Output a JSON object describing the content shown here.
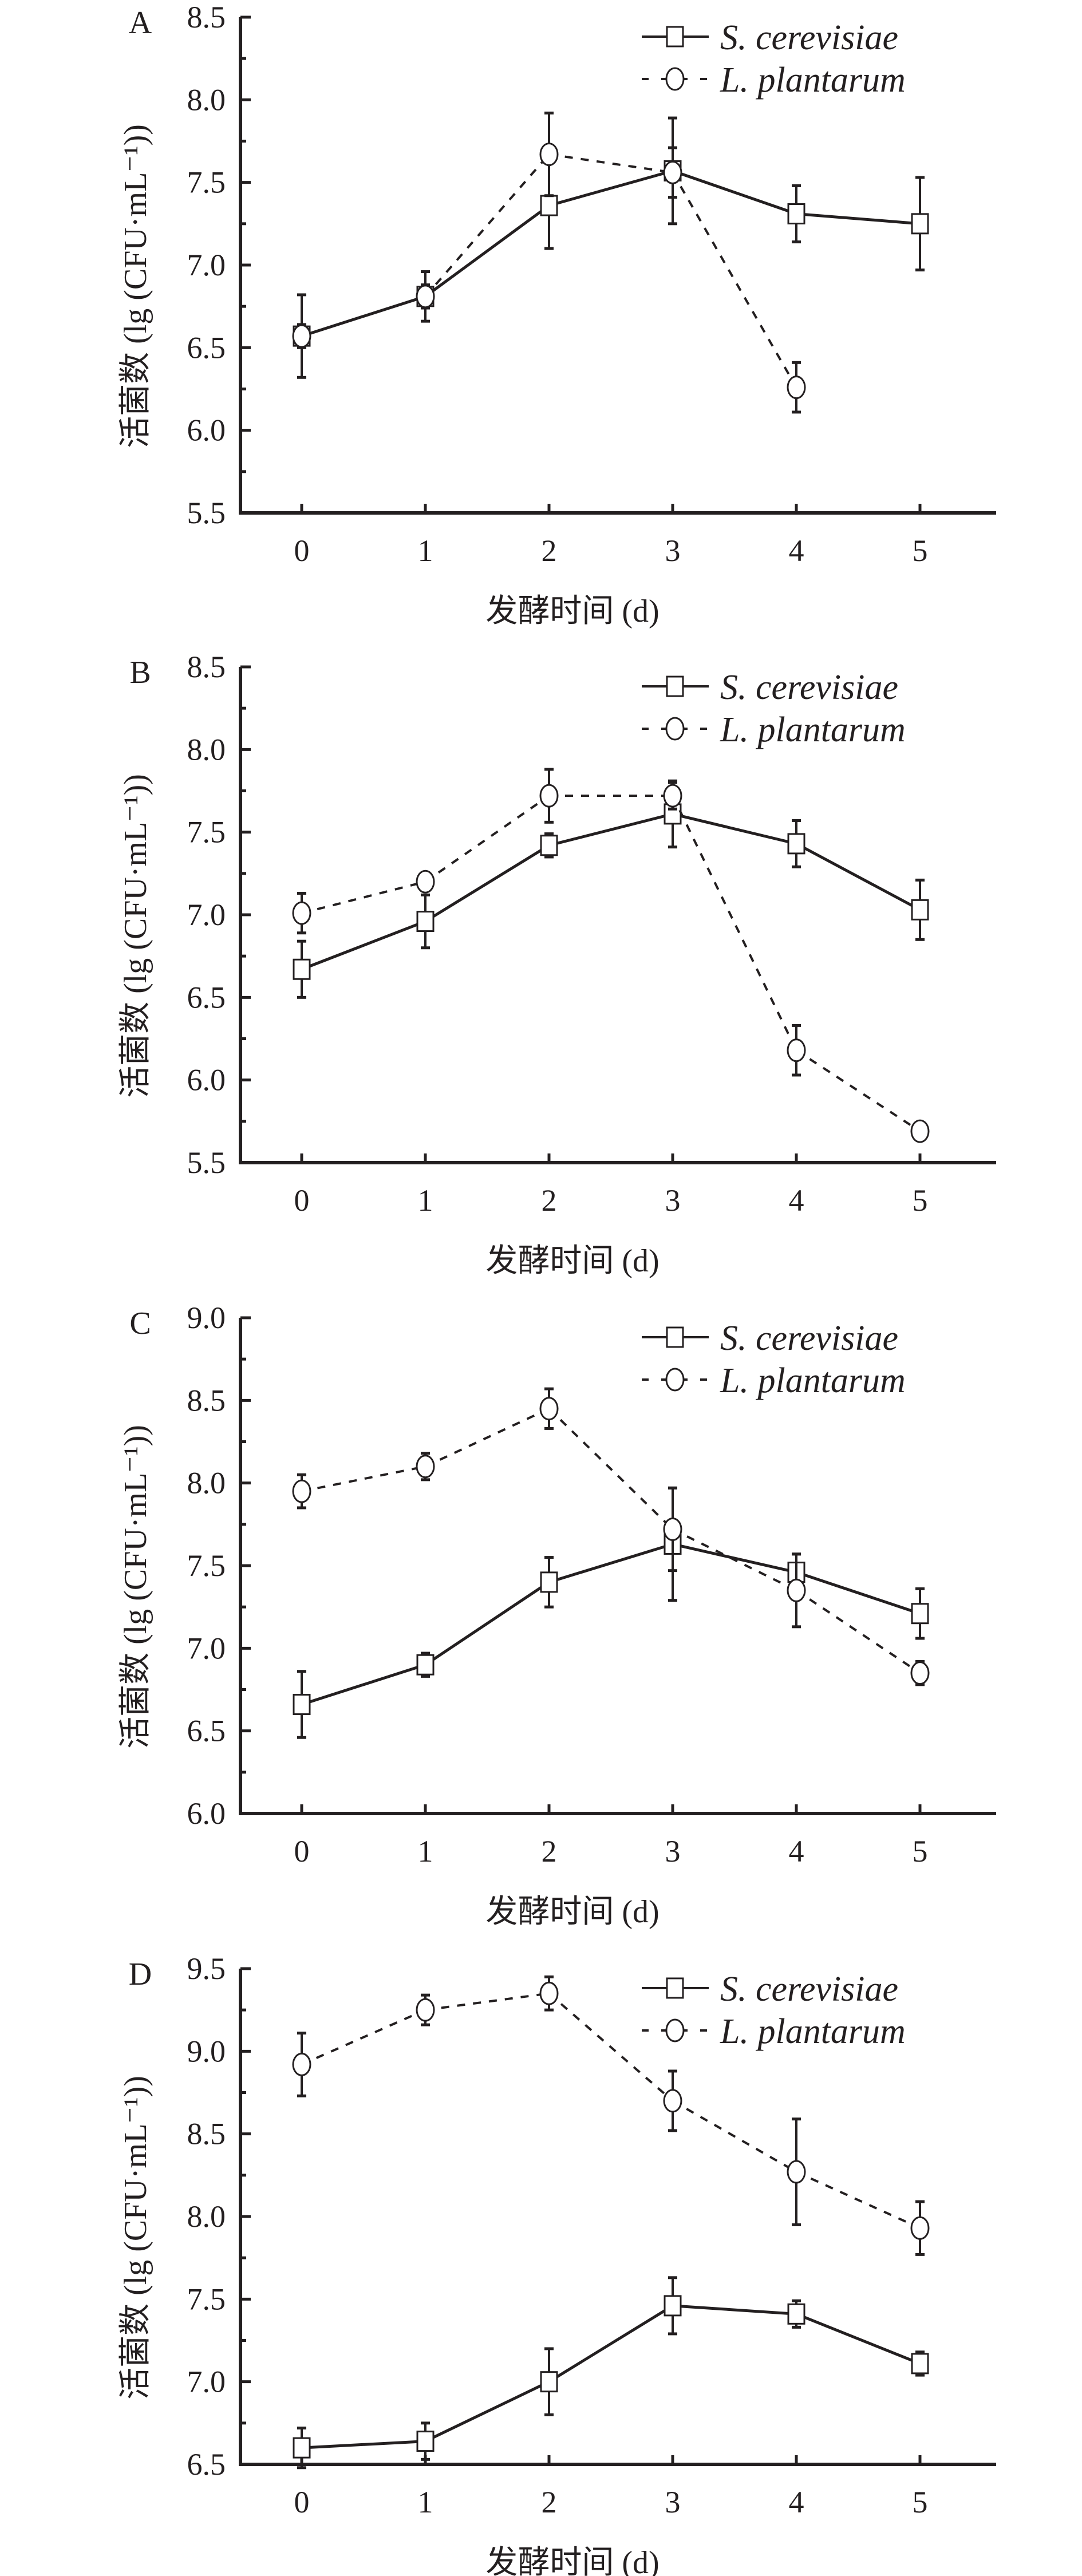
{
  "colors": {
    "ink": "#231f20",
    "marker_fill": "#ffffff"
  },
  "chart_data": [
    {
      "type": "line",
      "panel": "A",
      "xlabel": "发酵时间 (d)",
      "ylabel": "活菌数 (lg (CFU·mL⁻¹))",
      "x": [
        0,
        1,
        2,
        3,
        4,
        5
      ],
      "xticks": [
        "0",
        "1",
        "2",
        "3",
        "4",
        "5"
      ],
      "ylim": [
        5.5,
        8.5
      ],
      "yticks": [
        "5.5",
        "6.0",
        "6.5",
        "7.0",
        "7.5",
        "8.0",
        "8.5"
      ],
      "legend_position": "top-right",
      "series": [
        {
          "name": "S. cerevisiae",
          "marker": "square",
          "line": "solid",
          "values": [
            6.57,
            6.81,
            7.36,
            7.57,
            7.31,
            7.25
          ],
          "errors": [
            0.25,
            0.15,
            0.26,
            0.32,
            0.17,
            0.28
          ]
        },
        {
          "name": "L. plantarum",
          "marker": "circle",
          "line": "dashed",
          "values": [
            6.57,
            6.81,
            7.67,
            7.56,
            6.26,
            null
          ],
          "errors": [
            0.07,
            0.07,
            0.25,
            0.15,
            0.15,
            null
          ]
        }
      ]
    },
    {
      "type": "line",
      "panel": "B",
      "xlabel": "发酵时间 (d)",
      "ylabel": "活菌数 (lg (CFU·mL⁻¹))",
      "x": [
        0,
        1,
        2,
        3,
        4,
        5
      ],
      "xticks": [
        "0",
        "1",
        "2",
        "3",
        "4",
        "5"
      ],
      "ylim": [
        5.5,
        8.5
      ],
      "yticks": [
        "5.5",
        "6.0",
        "6.5",
        "7.0",
        "7.5",
        "8.0",
        "8.5"
      ],
      "legend_position": "top-right",
      "series": [
        {
          "name": "S. cerevisiae",
          "marker": "square",
          "line": "solid",
          "values": [
            6.67,
            6.96,
            7.42,
            7.61,
            7.43,
            7.03
          ],
          "errors": [
            0.17,
            0.16,
            0.07,
            0.2,
            0.14,
            0.18
          ]
        },
        {
          "name": "L. plantarum",
          "marker": "circle",
          "line": "dashed",
          "values": [
            7.01,
            7.2,
            7.72,
            7.72,
            6.18,
            5.69
          ],
          "errors": [
            0.12,
            0.04,
            0.16,
            0.08,
            0.15,
            0.05
          ]
        }
      ]
    },
    {
      "type": "line",
      "panel": "C",
      "xlabel": "发酵时间 (d)",
      "ylabel": "活菌数 (lg (CFU·mL⁻¹))",
      "x": [
        0,
        1,
        2,
        3,
        4,
        5
      ],
      "xticks": [
        "0",
        "1",
        "2",
        "3",
        "4",
        "5"
      ],
      "ylim": [
        6.0,
        9.0
      ],
      "yticks": [
        "6.0",
        "6.5",
        "7.0",
        "7.5",
        "8.0",
        "8.5",
        "9.0"
      ],
      "legend_position": "top-right",
      "series": [
        {
          "name": "S. cerevisiae",
          "marker": "square",
          "line": "solid",
          "values": [
            6.66,
            6.9,
            7.4,
            7.63,
            7.46,
            7.21
          ],
          "errors": [
            0.2,
            0.07,
            0.15,
            0.34,
            0.11,
            0.15
          ]
        },
        {
          "name": "L. plantarum",
          "marker": "circle",
          "line": "dashed",
          "values": [
            7.95,
            8.1,
            8.45,
            7.72,
            7.35,
            6.85
          ],
          "errors": [
            0.1,
            0.08,
            0.12,
            0.25,
            0.22,
            0.07
          ]
        }
      ]
    },
    {
      "type": "line",
      "panel": "D",
      "xlabel": "发酵时间 (d)",
      "ylabel": "活菌数 (lg (CFU·mL⁻¹))",
      "x": [
        0,
        1,
        2,
        3,
        4,
        5
      ],
      "xticks": [
        "0",
        "1",
        "2",
        "3",
        "4",
        "5"
      ],
      "ylim": [
        6.5,
        9.5
      ],
      "yticks": [
        "6.5",
        "7.0",
        "7.5",
        "8.0",
        "8.5",
        "9.0",
        "9.5"
      ],
      "legend_position": "top-right",
      "series": [
        {
          "name": "S. cerevisiae",
          "marker": "square",
          "line": "solid",
          "values": [
            6.6,
            6.64,
            7.0,
            7.46,
            7.41,
            7.11
          ],
          "errors": [
            0.12,
            0.11,
            0.2,
            0.17,
            0.08,
            0.07
          ]
        },
        {
          "name": "L. plantarum",
          "marker": "circle",
          "line": "dashed",
          "values": [
            8.92,
            9.25,
            9.35,
            8.7,
            8.27,
            7.93
          ],
          "errors": [
            0.19,
            0.09,
            0.1,
            0.18,
            0.32,
            0.16
          ]
        }
      ]
    }
  ]
}
